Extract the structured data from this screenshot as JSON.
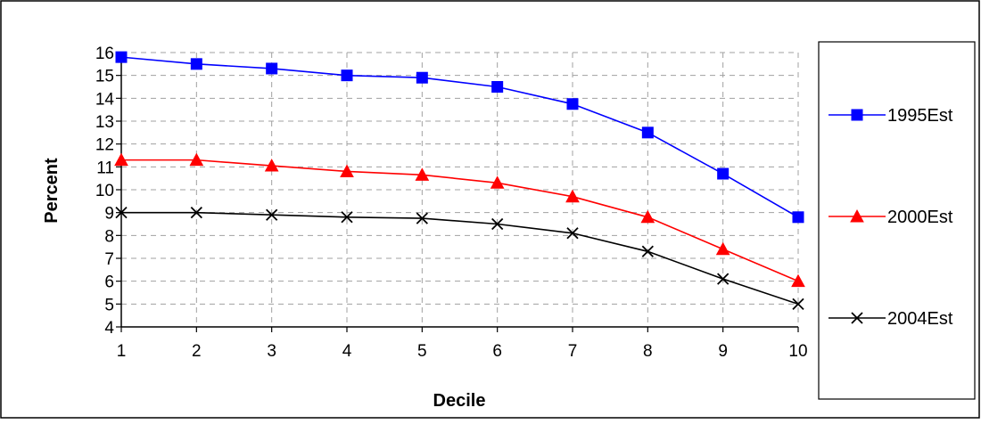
{
  "chart_data": {
    "type": "line",
    "title": "",
    "xlabel": "Decile",
    "ylabel": "Percent",
    "x": [
      1,
      2,
      3,
      4,
      5,
      6,
      7,
      8,
      9,
      10
    ],
    "xlim": [
      1,
      10
    ],
    "ylim": [
      4,
      16
    ],
    "yticks": [
      4,
      5,
      6,
      7,
      8,
      9,
      10,
      11,
      12,
      13,
      14,
      15,
      16
    ],
    "grid": true,
    "legend_position": "right",
    "series": [
      {
        "name": "1995Est",
        "color": "#0000ff",
        "marker": "square",
        "values": [
          15.8,
          15.5,
          15.3,
          15.0,
          14.9,
          14.5,
          13.75,
          12.5,
          10.7,
          8.8
        ]
      },
      {
        "name": "2000Est",
        "color": "#ff0000",
        "marker": "triangle",
        "values": [
          11.3,
          11.3,
          11.05,
          10.8,
          10.65,
          10.3,
          9.7,
          8.8,
          7.4,
          6.0
        ]
      },
      {
        "name": "2004Est",
        "color": "#000000",
        "marker": "x",
        "values": [
          9.0,
          9.0,
          8.9,
          8.8,
          8.75,
          8.5,
          8.1,
          7.3,
          6.1,
          5.0
        ]
      }
    ]
  }
}
